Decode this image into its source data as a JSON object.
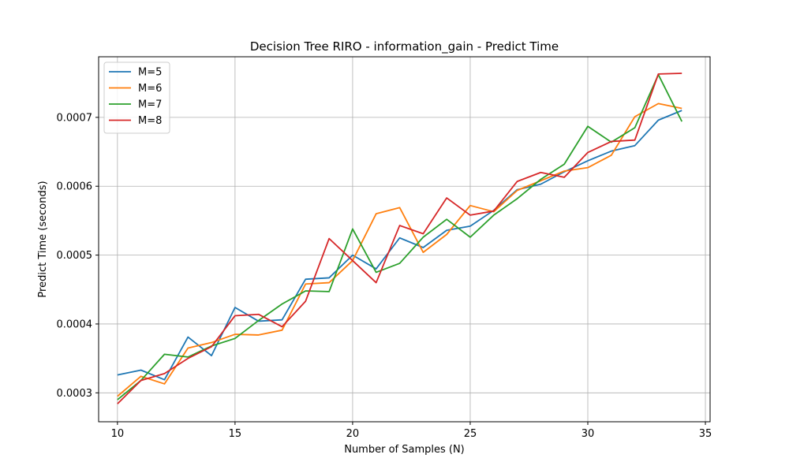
{
  "chart_data": {
    "type": "line",
    "title": "Decision Tree RIRO - information_gain - Predict Time",
    "xlabel": "Number of Samples (N)",
    "ylabel": "Predict Time (seconds)",
    "xlim": [
      9.2,
      35.2
    ],
    "ylim": [
      0.000258,
      0.000788
    ],
    "xticks": [
      10,
      15,
      20,
      25,
      30,
      35
    ],
    "yticks": [
      0.0003,
      0.0004,
      0.0005,
      0.0006,
      0.0007
    ],
    "ytick_labels": [
      "0.0003",
      "0.0004",
      "0.0005",
      "0.0006",
      "0.0007"
    ],
    "grid": true,
    "legend_position": "top-left",
    "x": [
      10,
      11,
      12,
      13,
      14,
      15,
      16,
      17,
      18,
      19,
      20,
      21,
      22,
      23,
      24,
      25,
      26,
      27,
      28,
      29,
      30,
      31,
      32,
      33,
      34
    ],
    "series": [
      {
        "name": "M=5",
        "color": "#1f77b4",
        "values": [
          0.000326,
          0.000333,
          0.000319,
          0.000381,
          0.000354,
          0.000424,
          0.000404,
          0.000406,
          0.000465,
          0.000467,
          0.0005,
          0.00048,
          0.000525,
          0.000511,
          0.000536,
          0.000542,
          0.000565,
          0.000595,
          0.000603,
          0.000621,
          0.000637,
          0.000651,
          0.000659,
          0.000696,
          0.00071
        ]
      },
      {
        "name": "M=6",
        "color": "#ff7f0e",
        "values": [
          0.000295,
          0.000324,
          0.000313,
          0.000365,
          0.000373,
          0.000385,
          0.000384,
          0.000391,
          0.000458,
          0.00046,
          0.000492,
          0.00056,
          0.000569,
          0.000504,
          0.00053,
          0.000572,
          0.000563,
          0.000594,
          0.000608,
          0.000622,
          0.000627,
          0.000645,
          0.000701,
          0.00072,
          0.000713
        ]
      },
      {
        "name": "M=7",
        "color": "#2ca02c",
        "values": [
          0.00029,
          0.000318,
          0.000356,
          0.000352,
          0.000368,
          0.000379,
          0.000405,
          0.000429,
          0.000448,
          0.000447,
          0.000538,
          0.000475,
          0.000488,
          0.000526,
          0.000552,
          0.000526,
          0.000558,
          0.000582,
          0.00061,
          0.000632,
          0.000687,
          0.000664,
          0.000685,
          0.000762,
          0.000694
        ]
      },
      {
        "name": "M=8",
        "color": "#d62728",
        "values": [
          0.000284,
          0.000318,
          0.000328,
          0.00035,
          0.000367,
          0.000412,
          0.000414,
          0.000396,
          0.000433,
          0.000524,
          0.000492,
          0.00046,
          0.000543,
          0.000531,
          0.000583,
          0.000558,
          0.000564,
          0.000607,
          0.00062,
          0.000613,
          0.000649,
          0.000665,
          0.000667,
          0.000763,
          0.000764
        ]
      }
    ]
  }
}
